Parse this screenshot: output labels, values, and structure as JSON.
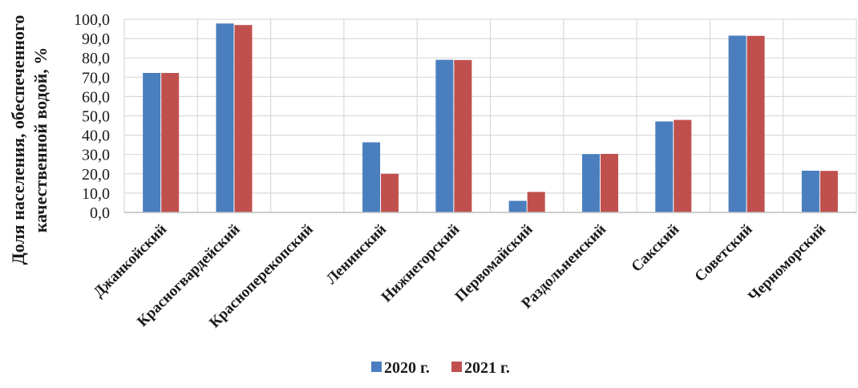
{
  "chart_data": {
    "type": "bar",
    "categories": [
      "Джанкойский",
      "Красногвардейский",
      "Красноперекопский",
      "Ленинский",
      "Нижнегорский",
      "Первомайский",
      "Раздольненский",
      "Сакский",
      "Советский",
      "Черноморский"
    ],
    "series": [
      {
        "name": "2020 г.",
        "color": "#4a7ebf",
        "values": [
          72.2,
          97.8,
          0,
          36.3,
          79.0,
          6.0,
          30.2,
          47.1,
          91.5,
          21.6
        ]
      },
      {
        "name": "2021 г.",
        "color": "#c0504d",
        "values": [
          72.2,
          97.0,
          0,
          20.0,
          78.9,
          10.6,
          30.3,
          47.9,
          91.4,
          21.5
        ]
      }
    ],
    "ylabel_lines": [
      "Доля населения, обеспеченного",
      "качественной водой, %"
    ],
    "ylim": [
      0,
      100
    ],
    "yticks": [
      0,
      10,
      20,
      30,
      40,
      50,
      60,
      70,
      80,
      90,
      100
    ],
    "ytick_labels": [
      "0,0",
      "10,0",
      "20,0",
      "30,0",
      "40,0",
      "50,0",
      "60,0",
      "70,0",
      "80,0",
      "90,0",
      "100,0"
    ],
    "grid": true,
    "legend_position": "bottom"
  }
}
